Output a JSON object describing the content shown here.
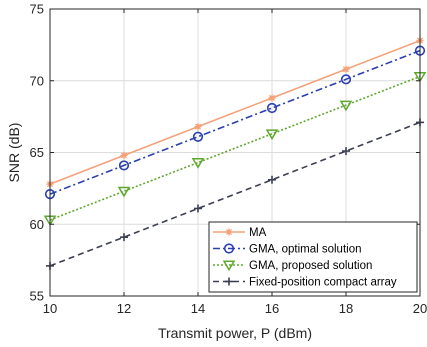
{
  "chart_data": {
    "type": "line",
    "xlabel": "Transmit power, P (dBm)",
    "ylabel": "SNR (dB)",
    "xlim": [
      10,
      20
    ],
    "ylim": [
      55,
      75
    ],
    "x_ticks": [
      "10",
      "12",
      "14",
      "16",
      "18",
      "20"
    ],
    "y_ticks": [
      "55",
      "60",
      "65",
      "70",
      "75"
    ],
    "grid": true,
    "legend_position": "bottom-right",
    "x": [
      10,
      12,
      14,
      16,
      18,
      20
    ],
    "series": [
      {
        "name": "MA",
        "values": [
          62.8,
          64.8,
          66.8,
          68.8,
          70.8,
          72.8
        ],
        "color": "#F4A27A",
        "marker": "asterisk",
        "dash": "solid"
      },
      {
        "name": "GMA, optimal solution",
        "values": [
          62.1,
          64.1,
          66.1,
          68.1,
          70.1,
          72.1
        ],
        "color": "#2A3FB0",
        "marker": "circle",
        "dash": "dashdot"
      },
      {
        "name": "GMA, proposed solution",
        "values": [
          60.3,
          62.3,
          64.3,
          66.3,
          68.3,
          70.3
        ],
        "color": "#5FA82E",
        "marker": "triangle-down",
        "dash": "dotted"
      },
      {
        "name": "Fixed-position compact array",
        "values": [
          57.1,
          59.1,
          61.1,
          63.1,
          65.1,
          67.1
        ],
        "color": "#3C3F52",
        "marker": "plus",
        "dash": "dashed"
      }
    ]
  }
}
